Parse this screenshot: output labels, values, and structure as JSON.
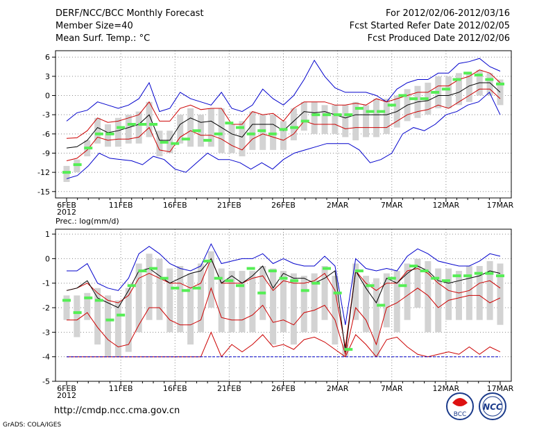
{
  "header": {
    "title": "DERF/NCC/BCC Monthly Forecast",
    "member": "Member Size=40",
    "variable": "Mean Surf. Temp.: °C",
    "period": "For 2012/02/06-2012/03/16",
    "refer": "Fcst Started Refer Date 2012/02/05",
    "produced": "Fcst Produced Date 2012/02/06"
  },
  "footer": {
    "url": "http://cmdp.ncc.cma.gov.cn",
    "grads": "GrADS: COLA/IGES",
    "logo_bcc": "BCC",
    "logo_ncc": "NCC"
  },
  "colors": {
    "blue": "#0000cc",
    "red": "#cc0000",
    "black": "#000000",
    "green": "#55ee55",
    "box": "#d3d3d3",
    "grid": "#888888"
  },
  "chart_data": [
    {
      "type": "line",
      "title": "Mean Surf. Temp.: °C",
      "ylim": [
        -16,
        7
      ],
      "yticks": [
        6,
        3,
        0,
        -3,
        -6,
        -9,
        -12,
        -15
      ],
      "xticks": [
        {
          "day": 0,
          "label": "6FEB",
          "sub": "2012"
        },
        {
          "day": 5,
          "label": "11FEB"
        },
        {
          "day": 10,
          "label": "16FEB"
        },
        {
          "day": 15,
          "label": "21FEB"
        },
        {
          "day": 20,
          "label": "26FEB"
        },
        {
          "day": 25,
          "label": "2MAR"
        },
        {
          "day": 30,
          "label": "7MAR"
        },
        {
          "day": 35,
          "label": "12MAR"
        },
        {
          "day": 40,
          "label": "17MAR"
        }
      ],
      "series": [
        {
          "name": "max",
          "color": "blue",
          "values": [
            -4,
            -2.7,
            -2.3,
            -1,
            -1.5,
            -2,
            -1.5,
            -0.5,
            2,
            -2.5,
            -2,
            0.5,
            -0.5,
            -1,
            -1.5,
            0.5,
            -2,
            -2.5,
            -1.5,
            1,
            -0.5,
            -1.5,
            0,
            2.5,
            5.5,
            3,
            1.2,
            0.5,
            0.5,
            0.5,
            0,
            -1,
            1,
            2,
            2.5,
            2.5,
            3.5,
            3.5,
            5,
            5.3,
            5.8,
            4.5,
            3.8
          ]
        },
        {
          "name": "upper",
          "color": "red",
          "values": [
            -6.7,
            -6.6,
            -5.5,
            -3.5,
            -4.2,
            -4,
            -3.5,
            -3,
            -1,
            -4,
            -4,
            -2,
            -1.5,
            -2.2,
            -2,
            -2,
            -4.5,
            -4.5,
            -2.5,
            -3,
            -2.8,
            -4,
            -2,
            -1,
            -1,
            -1,
            -1.5,
            -1.5,
            -1.2,
            -1.5,
            -0.5,
            -1,
            -0.5,
            0,
            0.5,
            0.5,
            1.5,
            1.5,
            2.5,
            3,
            4,
            3.5,
            2
          ]
        },
        {
          "name": "median",
          "color": "black",
          "values": [
            -8.2,
            -8,
            -7,
            -5,
            -5.8,
            -5.5,
            -5,
            -4.5,
            -3,
            -7,
            -7,
            -4.5,
            -3.5,
            -4.2,
            -4,
            -5,
            -6,
            -6.5,
            -4.5,
            -4.5,
            -4.5,
            -5.5,
            -4,
            -2.5,
            -2.7,
            -2.5,
            -3,
            -3.5,
            -3,
            -3,
            -3,
            -3,
            -2.5,
            -1.5,
            -1,
            -0.8,
            0,
            0,
            0.5,
            1.5,
            2,
            2,
            0.5
          ]
        },
        {
          "name": "lower",
          "color": "red",
          "values": [
            -10.2,
            -9.8,
            -8.5,
            -6.5,
            -7,
            -6.8,
            -6.8,
            -6.5,
            -5,
            -8.5,
            -8.8,
            -6.5,
            -5.5,
            -6.2,
            -6.2,
            -6.8,
            -7.8,
            -8.5,
            -6.8,
            -6,
            -6.5,
            -7,
            -6,
            -4,
            -4.5,
            -4.5,
            -4.5,
            -5.2,
            -5,
            -5,
            -5,
            -5,
            -4,
            -3,
            -2.5,
            -2.2,
            -1.5,
            -2,
            -1,
            0,
            1,
            1,
            -0.5
          ]
        },
        {
          "name": "min",
          "color": "blue",
          "values": [
            -13,
            -12.5,
            -11,
            -9,
            -9.8,
            -10,
            -10.2,
            -10.8,
            -9.5,
            -10,
            -11.5,
            -12,
            -10.5,
            -9,
            -10,
            -10,
            -10.5,
            -11.5,
            -10.5,
            -11.5,
            -10,
            -9,
            -8.5,
            -8,
            -7.5,
            -7.5,
            -7.5,
            -8.5,
            -10.5,
            -10,
            -9,
            -6,
            -5,
            -5.5,
            -4.5,
            -3,
            -2.5,
            -1.5,
            -1,
            0.5,
            -3
          ]
        },
        {
          "name": "observed",
          "color": "green",
          "values": [
            -12,
            -10.8,
            -8.2,
            -6,
            -6,
            -5,
            -4.5,
            -4.5,
            -4.5,
            -7.3,
            -7.5,
            -6.8,
            -5.5,
            -7,
            -6,
            -4.3,
            -5,
            -6,
            -5.5,
            -6,
            -5.3,
            -5,
            -4,
            -3,
            -3,
            -3,
            -3,
            -2,
            -2.5,
            -2.5,
            -1.5,
            0,
            -0.5,
            -0.5,
            0.5,
            1,
            2.5,
            3.5,
            3.2,
            2.5,
            1.8
          ]
        },
        {
          "name": "box_high",
          "color": "box",
          "values": [
            -11,
            -10,
            -7,
            -3.5,
            -4.5,
            -3.5,
            -3,
            -2.5,
            -1,
            -5.5,
            -5.5,
            -3,
            -2,
            -3,
            -2,
            -2,
            -4.5,
            -4,
            -2.5,
            -3,
            -3,
            -4,
            -2,
            -1,
            -1,
            -1.5,
            -1.5,
            -1.5,
            -1,
            -1.5,
            -0.5,
            -0.5,
            0,
            1,
            1.5,
            2,
            3,
            3,
            3.5,
            3.5,
            4,
            3.5,
            2.5
          ]
        },
        {
          "name": "box_low",
          "color": "box",
          "values": [
            -13.5,
            -12,
            -9.5,
            -7.5,
            -8,
            -8,
            -7.5,
            -7.5,
            -6.5,
            -9.5,
            -9,
            -7.5,
            -8,
            -8,
            -8,
            -9,
            -9,
            -9.5,
            -8.5,
            -8.5,
            -8.5,
            -8.5,
            -7,
            -5.5,
            -6,
            -6,
            -6,
            -6.5,
            -7,
            -6.5,
            -6.5,
            -6,
            -5,
            -4,
            -3.5,
            -3,
            -2,
            -2,
            -1.5,
            -1,
            0,
            0,
            -1.5
          ]
        }
      ]
    },
    {
      "type": "line",
      "title": "Prec.: log(mm/d)",
      "ylim": [
        -5,
        1.2
      ],
      "yticks": [
        1,
        0,
        -1,
        -2,
        -3,
        -4,
        -5
      ],
      "xticks": [
        {
          "day": 0,
          "label": "6FEB",
          "sub": "2012"
        },
        {
          "day": 5,
          "label": "11FEB"
        },
        {
          "day": 10,
          "label": "16FEB"
        },
        {
          "day": 15,
          "label": "21FEB"
        },
        {
          "day": 20,
          "label": "26FEB"
        },
        {
          "day": 25,
          "label": "2MAR"
        },
        {
          "day": 30,
          "label": "7MAR"
        },
        {
          "day": 35,
          "label": "12MAR"
        },
        {
          "day": 40,
          "label": "17MAR"
        }
      ],
      "series": [
        {
          "name": "max",
          "color": "blue",
          "values": [
            -0.5,
            -0.5,
            -0.2,
            -1,
            -1.2,
            -1.3,
            -0.8,
            0.2,
            0.5,
            0.2,
            -0.2,
            -0.4,
            -0.5,
            -0.3,
            0.6,
            -0.2,
            -0.1,
            0,
            0,
            0.2,
            -0.2,
            0,
            -0.2,
            -0.3,
            -0.3,
            0.1,
            -0.3,
            -2.7,
            0,
            -0.4,
            -0.5,
            -0.4,
            -0.5,
            0.1,
            0.4,
            0.2,
            -0.1,
            -0.2,
            -0.3,
            -0.3,
            -0.1,
            0.2,
            0.1
          ]
        },
        {
          "name": "upper",
          "color": "red",
          "values": [
            -1.3,
            -1.2,
            -1,
            -1.4,
            -1.7,
            -1.8,
            -1.5,
            -0.8,
            -0.6,
            -0.8,
            -1,
            -1,
            -1.2,
            -1,
            0,
            -1,
            -1,
            -1,
            -0.8,
            -0.7,
            -1.3,
            -0.9,
            -1,
            -1,
            -0.9,
            -0.6,
            -1.3,
            -3.6,
            -0.5,
            -1,
            -1.3,
            -1,
            -1,
            -0.5,
            -0.4,
            -0.6,
            -1,
            -1.3,
            -1.4,
            -1.3,
            -1,
            -0.9,
            -1.2
          ]
        },
        {
          "name": "median",
          "color": "black",
          "values": [
            -1.3,
            -1.2,
            -0.9,
            -1.6,
            -1.8,
            -2,
            -1.3,
            -0.5,
            -0.4,
            -0.7,
            -1,
            -0.8,
            -0.6,
            -0.5,
            0,
            -1,
            -0.7,
            -1,
            -0.7,
            -0.3,
            -1.2,
            -0.6,
            -0.8,
            -0.8,
            -1,
            -0.8,
            -0.5,
            -3.8,
            -0.5,
            -1.2,
            -1.8,
            -0.8,
            -1,
            -0.6,
            -0.3,
            -0.5,
            -0.9,
            -1,
            -0.9,
            -0.8,
            -0.7,
            -0.5,
            -0.6
          ]
        },
        {
          "name": "lower",
          "color": "red",
          "values": [
            -2.5,
            -2.5,
            -2.2,
            -2.8,
            -3.3,
            -3.6,
            -3.5,
            -2.7,
            -2,
            -2,
            -2.5,
            -2.7,
            -2.7,
            -2.5,
            -1.2,
            -2.4,
            -2.5,
            -2.5,
            -2.3,
            -1.9,
            -2.6,
            -2.5,
            -2.7,
            -2.2,
            -2.1,
            -1.9,
            -2.5,
            -3.9,
            -2,
            -2.5,
            -3.5,
            -2,
            -1.8,
            -1.5,
            -1.2,
            -1.5,
            -2,
            -1.7,
            -1.6,
            -1.5,
            -1.5,
            -1.8,
            -1.6
          ]
        },
        {
          "name": "min",
          "color": "red",
          "values": [
            -4,
            -4,
            -4,
            -4,
            -4,
            -4,
            -4,
            -4,
            -4,
            -4,
            -4,
            -4,
            -4,
            -4,
            -3,
            -4,
            -3.5,
            -3.8,
            -3.5,
            -3.1,
            -3.6,
            -3.5,
            -3.7,
            -3.3,
            -3.2,
            -3.4,
            -3.7,
            -4,
            -3.1,
            -3.5,
            -4,
            -3.3,
            -3.2,
            -3.6,
            -3.9,
            -4,
            -3.9,
            -3.8,
            -3.9,
            -3.6,
            -3.9,
            -3.6,
            -3.8
          ]
        },
        {
          "name": "floor",
          "color": "blue",
          "values": [
            -4,
            -4
          ]
        },
        {
          "name": "observed",
          "color": "green",
          "values": [
            -1.7,
            -2.2,
            -1.6,
            -1.7,
            -2.5,
            -2.3,
            -1.1,
            -0.5,
            -0.4,
            -0.8,
            -1.2,
            -1.3,
            -1.2,
            -0.1,
            -0.8,
            -0.9,
            -1.1,
            -0.4,
            -1.4,
            -0.5,
            -0.8,
            -0.9,
            -1.3,
            -1,
            -0.4,
            -1.4,
            -3.7,
            -0.5,
            -1.1,
            -1.9,
            -0.8,
            -1.1,
            -0.3,
            -0.5,
            -0.8,
            -0.9,
            -0.7,
            -0.7,
            -0.6,
            -0.6,
            -0.7
          ]
        },
        {
          "name": "box_high",
          "color": "box",
          "values": [
            -1.5,
            -1.5,
            -1.4,
            -1.2,
            -1.5,
            -1.7,
            -1.2,
            -0.2,
            0.2,
            0,
            -0.4,
            -0.3,
            -0.6,
            -0.2,
            0.3,
            -0.4,
            -0.5,
            -0.5,
            -0.5,
            -0.3,
            -0.4,
            -0.5,
            -0.6,
            -0.7,
            -0.6,
            -0.3,
            -0.7,
            -3.5,
            -0.2,
            -0.7,
            -0.8,
            -0.6,
            -0.5,
            -0.2,
            0,
            -0.1,
            -0.4,
            -0.4,
            -0.5,
            -0.3,
            -0.3,
            -0.1,
            -0.2
          ]
        },
        {
          "name": "box_low",
          "color": "box",
          "values": [
            -2.5,
            -3.2,
            -2.5,
            -3.5,
            -4,
            -4,
            -3.8,
            -3,
            -2.5,
            -2.5,
            -3,
            -3,
            -3.5,
            -3,
            -2,
            -3,
            -3,
            -3,
            -3,
            -2.5,
            -3.5,
            -3,
            -3.5,
            -3,
            -3,
            -2.5,
            -3.5,
            -4,
            -2.5,
            -3,
            -4,
            -2.8,
            -3,
            -2.5,
            -2,
            -3,
            -3,
            -2.5,
            -2.5,
            -2.5,
            -2.5,
            -2.5,
            -2.7
          ]
        }
      ]
    }
  ]
}
